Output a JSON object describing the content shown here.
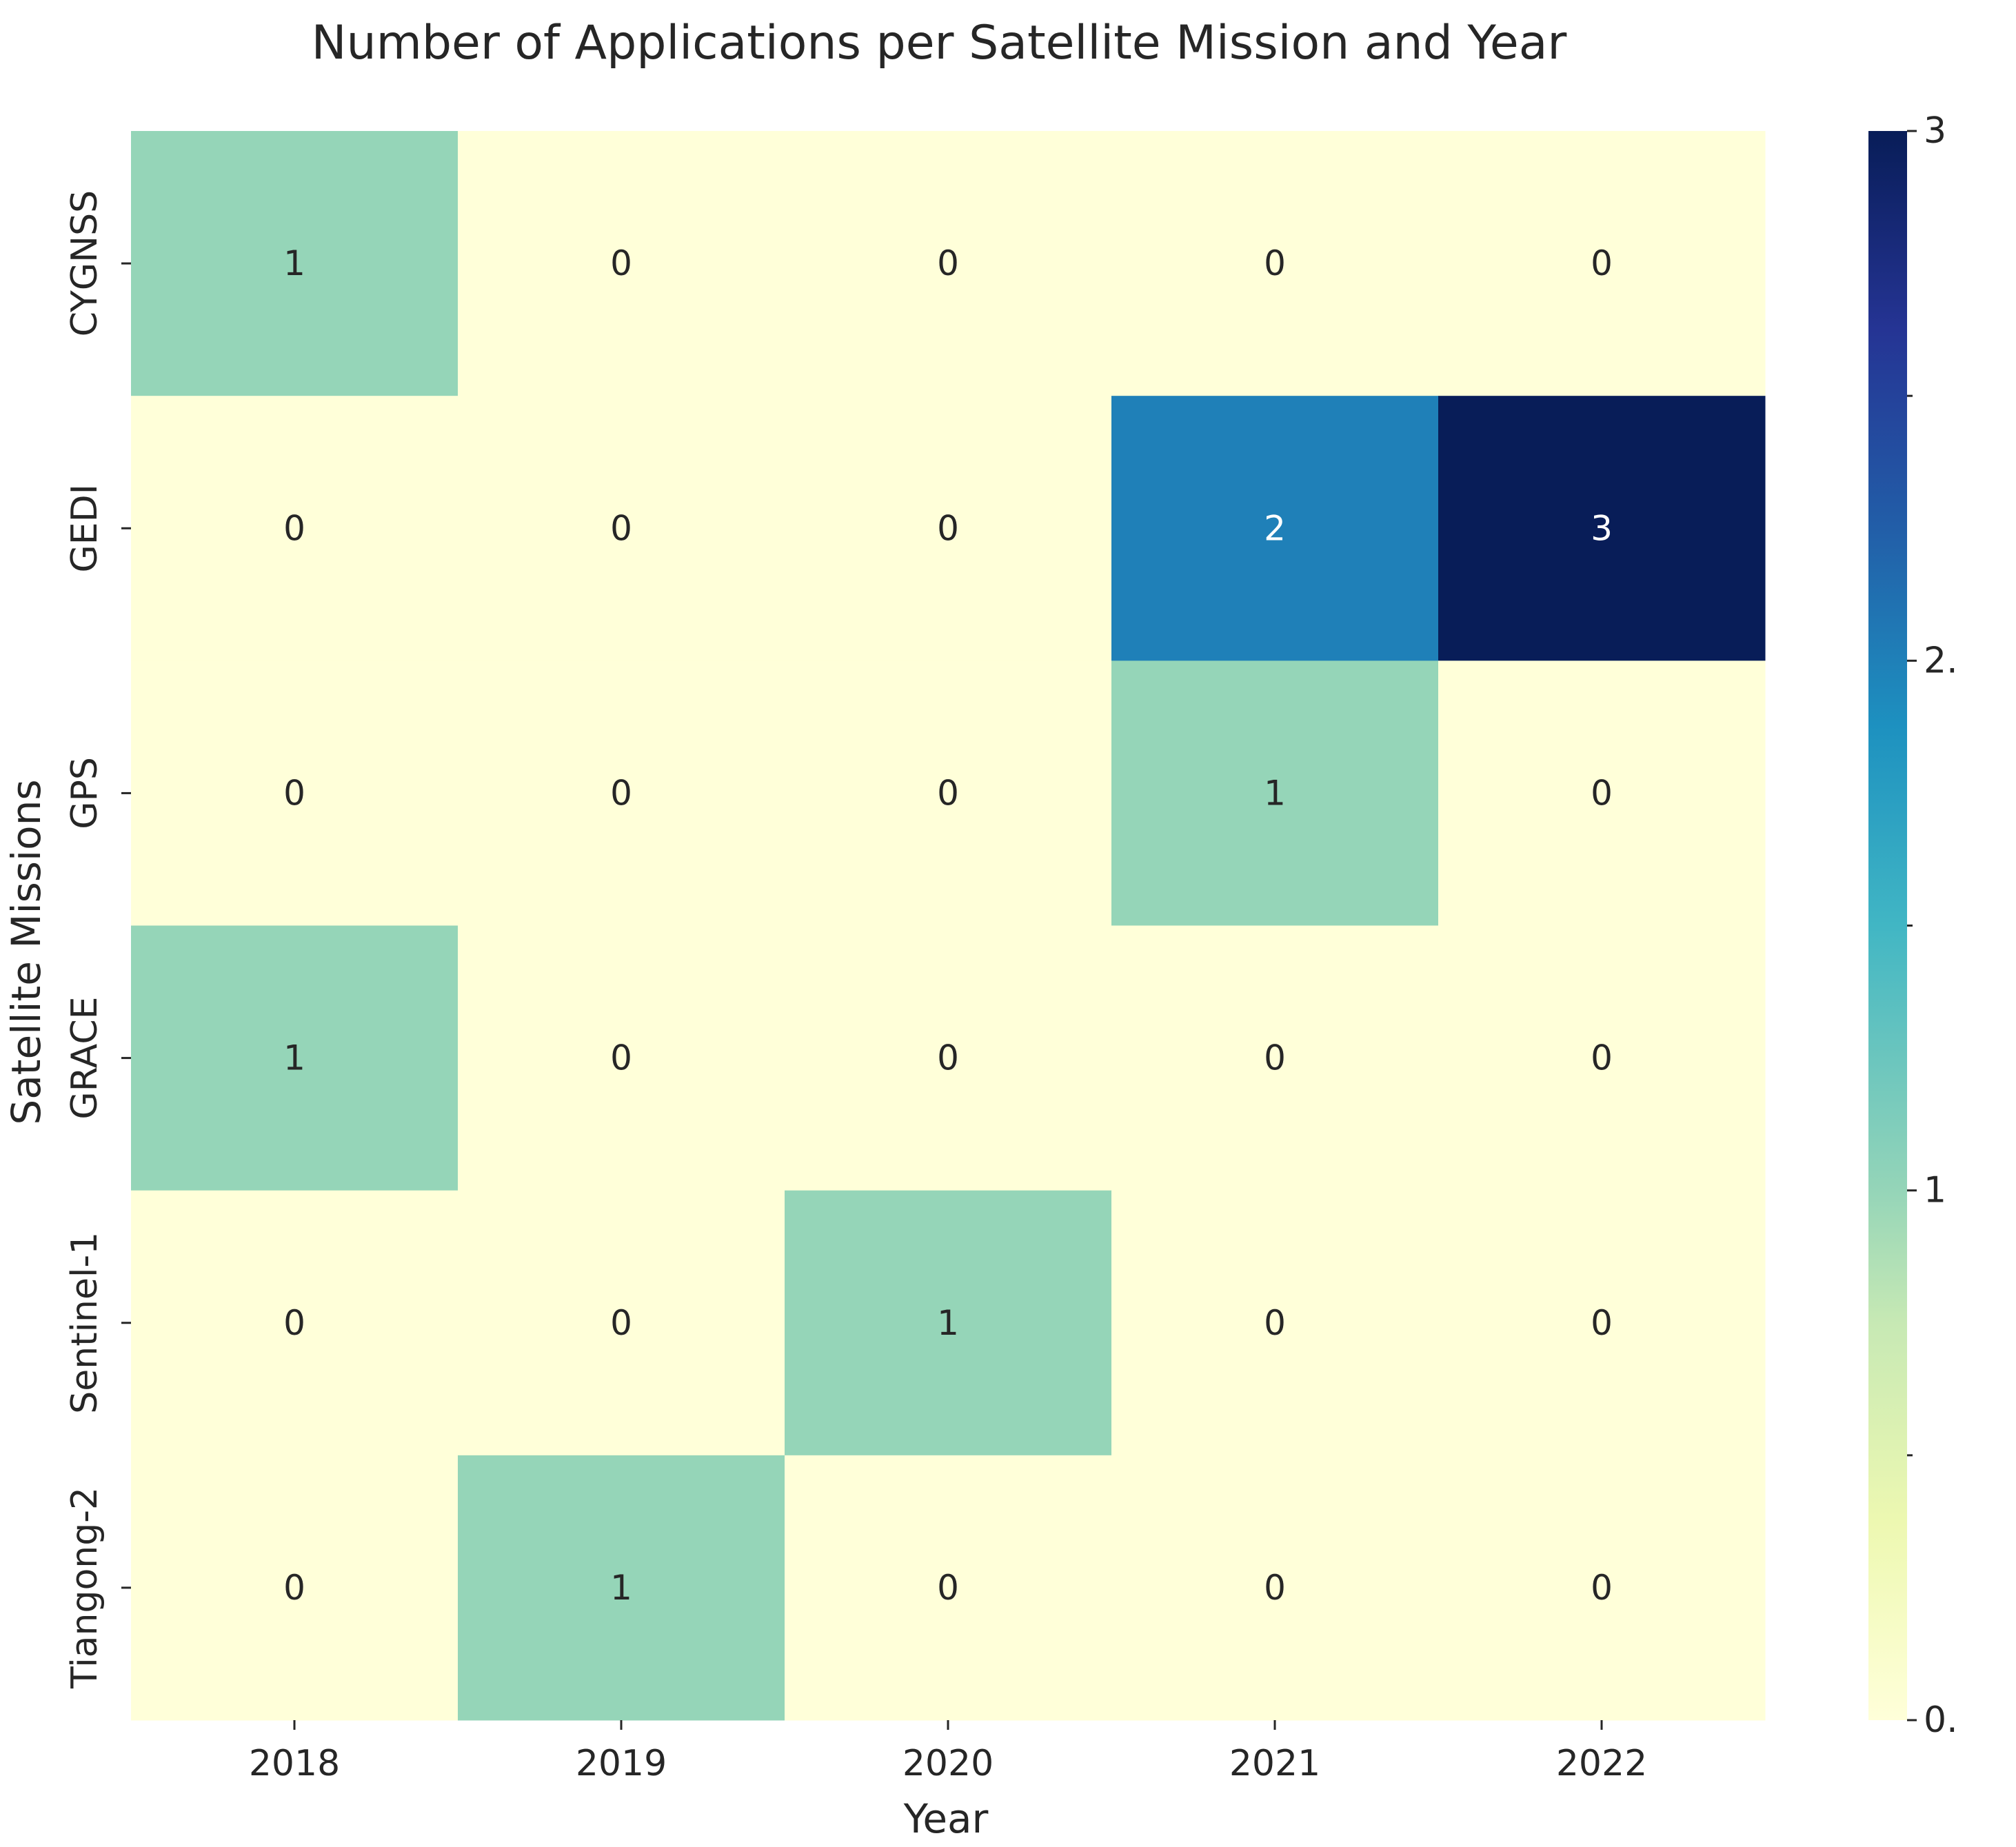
{
  "chart_data": {
    "type": "heatmap",
    "title": "Number of Applications per Satellite Mission and Year",
    "xlabel": "Year",
    "ylabel": "Satellite Missions",
    "x_categories": [
      "2018",
      "2019",
      "2020",
      "2021",
      "2022"
    ],
    "y_categories": [
      "CYGNSS",
      "GEDI",
      "GPS",
      "GRACE",
      "Sentinel-1",
      "Tiangong-2"
    ],
    "values": [
      [
        1,
        0,
        0,
        0,
        0
      ],
      [
        0,
        0,
        0,
        2,
        3
      ],
      [
        0,
        0,
        0,
        1,
        0
      ],
      [
        1,
        0,
        0,
        0,
        0
      ],
      [
        0,
        0,
        1,
        0,
        0
      ],
      [
        0,
        1,
        0,
        0,
        0
      ]
    ],
    "annotations": true,
    "colormap": "YlGnBu",
    "vmin": 0,
    "vmax": 3,
    "colorbar": {
      "tick_values": [
        0,
        1,
        2,
        3
      ],
      "tick_labels": [
        "0.",
        "1",
        "2.",
        "3"
      ]
    },
    "colors": {
      "low": "#ffffd9",
      "mid": "#95d5b8",
      "two": "#1f80b8",
      "high": "#081d58",
      "text_dark": "#262626",
      "text_light": "#ffffff"
    }
  }
}
